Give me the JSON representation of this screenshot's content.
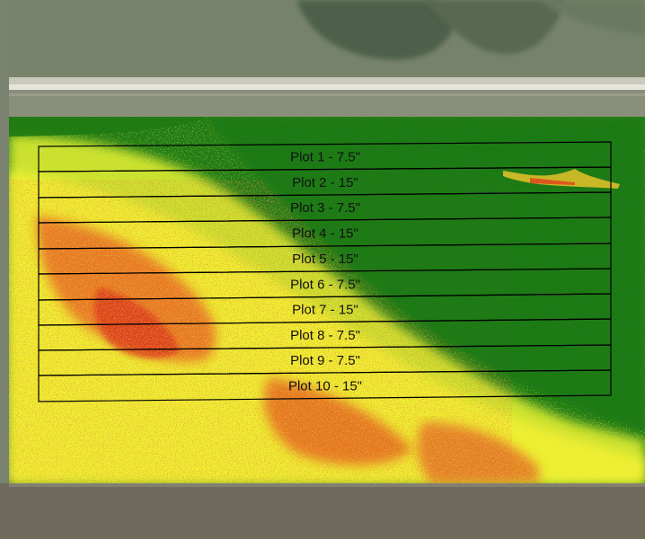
{
  "plots": [
    {
      "label": "Plot 1 - 7.5\""
    },
    {
      "label": "Plot 2 - 15\""
    },
    {
      "label": "Plot 3 - 7.5\""
    },
    {
      "label": "Plot 4 - 15\""
    },
    {
      "label": "Plot 5 - 15\""
    },
    {
      "label": "Plot 6 - 7.5\""
    },
    {
      "label": "Plot 7 - 15\""
    },
    {
      "label": "Plot 8 - 7.5\""
    },
    {
      "label": "Plot 9 - 7.5\""
    },
    {
      "label": "Plot 10 - 15\""
    }
  ],
  "colors": {
    "healthy": "#1f7a12",
    "moderate": "#c7e22a",
    "stressed": "#f2ef2e",
    "severe": "#e03015",
    "outline": "#000000"
  }
}
